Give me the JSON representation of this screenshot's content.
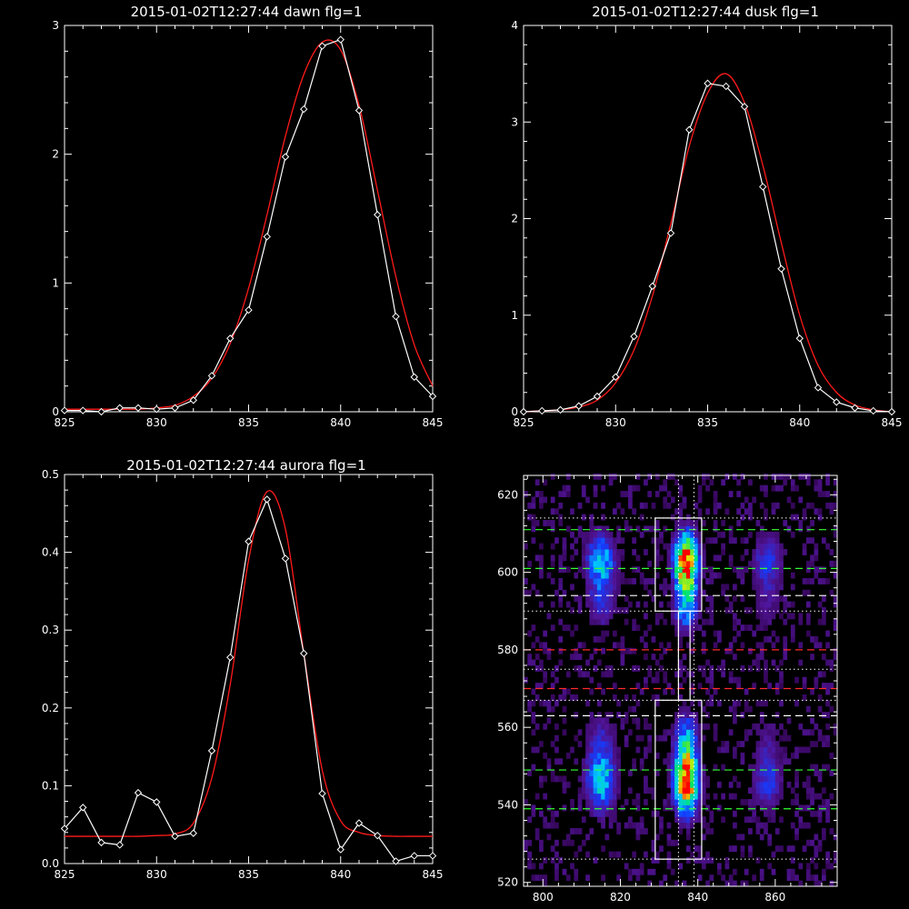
{
  "colors": {
    "background": "#000000",
    "axes": "#ffffff",
    "data_line": "#ffffff",
    "fit_line": "#ff1a1a",
    "green_dash": "#33ff33",
    "red_dash": "#ff2a2a",
    "white_dash": "#ffffff"
  },
  "chart_data": [
    {
      "type": "line",
      "title": "2015-01-02T12:27:44 dawn flg=1",
      "xlim": [
        825,
        845
      ],
      "ylim": [
        0,
        3
      ],
      "xticks": [
        825,
        830,
        835,
        840,
        845
      ],
      "yticks": [
        0,
        1,
        2,
        3
      ],
      "grid": false,
      "series": [
        {
          "marker": "diamond",
          "x": [
            825,
            826,
            827,
            828,
            829,
            830,
            831,
            832,
            833,
            834,
            835,
            836,
            837,
            838,
            839,
            840,
            841,
            842,
            843,
            844,
            845
          ],
          "y": [
            0.01,
            0.01,
            0.0,
            0.03,
            0.03,
            0.02,
            0.03,
            0.09,
            0.28,
            0.57,
            0.79,
            1.36,
            1.98,
            2.35,
            2.84,
            2.89,
            2.34,
            1.53,
            0.74,
            0.27,
            0.12
          ]
        },
        {
          "marker": "none",
          "x": [
            825,
            826,
            827,
            828,
            829,
            830,
            831,
            832,
            833,
            834,
            835,
            836,
            837,
            838,
            839,
            840,
            841,
            842,
            843,
            844,
            845
          ],
          "y": [
            0.02,
            0.02,
            0.02,
            0.02,
            0.02,
            0.03,
            0.05,
            0.12,
            0.26,
            0.53,
            0.96,
            1.53,
            2.14,
            2.62,
            2.87,
            2.81,
            2.38,
            1.72,
            1.05,
            0.52,
            0.2
          ]
        }
      ]
    },
    {
      "type": "line",
      "title": "2015-01-02T12:27:44 dusk flg=1",
      "xlim": [
        825,
        845
      ],
      "ylim": [
        0,
        4
      ],
      "xticks": [
        825,
        830,
        835,
        840,
        845
      ],
      "yticks": [
        0,
        1,
        2,
        3,
        4
      ],
      "grid": false,
      "series": [
        {
          "marker": "diamond",
          "x": [
            825,
            826,
            827,
            828,
            829,
            830,
            831,
            832,
            833,
            834,
            835,
            836,
            837,
            838,
            839,
            840,
            841,
            842,
            843,
            844,
            845
          ],
          "y": [
            0.0,
            0.01,
            0.02,
            0.06,
            0.16,
            0.36,
            0.78,
            1.3,
            1.85,
            2.92,
            3.4,
            3.37,
            3.16,
            2.33,
            1.48,
            0.76,
            0.25,
            0.1,
            0.04,
            0.01,
            0.0
          ]
        },
        {
          "marker": "none",
          "x": [
            825,
            826,
            827,
            828,
            829,
            830,
            831,
            832,
            833,
            834,
            835,
            836,
            837,
            838,
            839,
            840,
            841,
            842,
            843,
            844,
            845
          ],
          "y": [
            0.0,
            0.01,
            0.02,
            0.05,
            0.12,
            0.3,
            0.64,
            1.2,
            1.95,
            2.75,
            3.3,
            3.5,
            3.2,
            2.55,
            1.75,
            1.0,
            0.48,
            0.2,
            0.07,
            0.02,
            0.0
          ]
        }
      ]
    },
    {
      "type": "line",
      "title": "2015-01-02T12:27:44 aurora flg=1",
      "xlim": [
        825,
        845
      ],
      "ylim": [
        0,
        0.5
      ],
      "xticks": [
        825,
        830,
        835,
        840,
        845
      ],
      "yticks": [
        0.0,
        0.1,
        0.2,
        0.3,
        0.4,
        0.5
      ],
      "ytick_labels": [
        "0.0",
        "0.1",
        "0.2",
        "0.3",
        "0.4",
        "0.5"
      ],
      "grid": false,
      "series": [
        {
          "marker": "diamond",
          "x": [
            825,
            826,
            827,
            828,
            829,
            830,
            831,
            832,
            833,
            834,
            835,
            836,
            837,
            838,
            839,
            840,
            841,
            842,
            843,
            844,
            845
          ],
          "y": [
            0.045,
            0.072,
            0.027,
            0.024,
            0.091,
            0.079,
            0.035,
            0.039,
            0.145,
            0.265,
            0.414,
            0.468,
            0.392,
            0.27,
            0.09,
            0.018,
            0.052,
            0.036,
            0.003,
            0.01,
            0.01
          ]
        },
        {
          "marker": "none",
          "x": [
            825,
            826,
            827,
            828,
            829,
            830,
            831,
            832,
            833,
            834,
            835,
            836,
            837,
            838,
            839,
            840,
            841,
            842,
            843,
            844,
            845
          ],
          "y": [
            0.035,
            0.035,
            0.035,
            0.035,
            0.035,
            0.036,
            0.038,
            0.052,
            0.11,
            0.23,
            0.39,
            0.478,
            0.43,
            0.27,
            0.12,
            0.055,
            0.04,
            0.036,
            0.035,
            0.035,
            0.035
          ]
        }
      ]
    },
    {
      "type": "heatmap",
      "title": "",
      "xlim": [
        795,
        876
      ],
      "ylim": [
        519,
        625
      ],
      "xticks": [
        800,
        820,
        840,
        860
      ],
      "yticks": [
        520,
        540,
        560,
        580,
        600,
        620
      ],
      "grid": false,
      "colormap": "rainbow",
      "emission_columns": [
        {
          "center_x": 815,
          "width": 5,
          "relative_intensity": 0.5
        },
        {
          "center_x": 837,
          "width": 4,
          "relative_intensity": 1.0
        },
        {
          "center_x": 858,
          "width": 5,
          "relative_intensity": 0.3
        }
      ],
      "emission_bands_y": [
        {
          "from": 584,
          "to": 612,
          "peak": 602
        },
        {
          "from": 534,
          "to": 563,
          "peak": 546
        }
      ],
      "boxes": [
        {
          "x": [
            829,
            841
          ],
          "y": [
            590,
            614
          ]
        },
        {
          "x": [
            835,
            838
          ],
          "y": [
            567,
            590
          ]
        },
        {
          "x": [
            829,
            841
          ],
          "y": [
            526,
            567
          ]
        }
      ],
      "vlines_dotted": [
        835,
        839
      ],
      "hlines": [
        {
          "y": 611,
          "style": "dashed",
          "color": "green"
        },
        {
          "y": 601,
          "style": "dashed",
          "color": "green"
        },
        {
          "y": 594,
          "style": "dashed",
          "color": "white"
        },
        {
          "y": 580,
          "style": "dashed",
          "color": "red"
        },
        {
          "y": 570,
          "style": "dashed",
          "color": "red"
        },
        {
          "y": 563,
          "style": "dashed",
          "color": "white"
        },
        {
          "y": 549,
          "style": "dashed",
          "color": "green"
        },
        {
          "y": 539,
          "style": "dashed",
          "color": "green"
        },
        {
          "y": 614,
          "style": "dotted",
          "color": "white"
        },
        {
          "y": 590,
          "style": "dotted",
          "color": "white"
        },
        {
          "y": 575,
          "style": "dotted",
          "color": "white"
        },
        {
          "y": 567,
          "style": "dotted",
          "color": "white"
        },
        {
          "y": 526,
          "style": "dotted",
          "color": "white"
        }
      ]
    }
  ]
}
